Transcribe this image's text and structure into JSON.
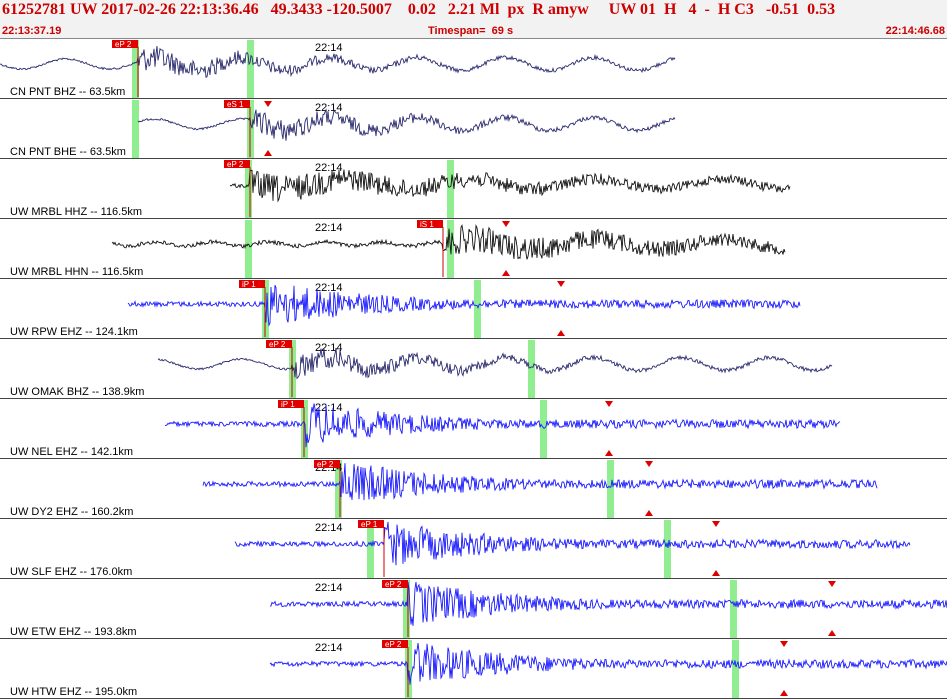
{
  "header": {
    "title": "61252781 UW 2017-02-26 22:13:36.46   49.3433 -120.5007    0.02   2.21 Ml  px  R amyw     UW 01  H   4  -  H C3   -0.51  0.53",
    "start_time": "22:13:37.19",
    "timespan": "Timespan=  69 s",
    "end_time": "22:14:46.68"
  },
  "colors": {
    "header_bg": "#f2f2f2",
    "header_text": "#cc0000",
    "pick_box": "#e00000",
    "green_marker": "#90ee90",
    "broadband": "#2a2a6e",
    "short_period": "#1a1aff",
    "mrbl": "#111111"
  },
  "minute_label": "22:14",
  "stations": [
    {
      "label": "CN PNT BHZ -- 63.5km",
      "pick": "eP 2",
      "color": "broadband",
      "style": "longperiod"
    },
    {
      "label": "CN PNT BHE -- 63.5km",
      "pick": "eS 1",
      "color": "broadband",
      "style": "longperiod"
    },
    {
      "label": "UW MRBL HHZ -- 116.5km",
      "pick": "eP 2",
      "color": "mrbl",
      "style": "broadband"
    },
    {
      "label": "UW MRBL HHN -- 116.5km",
      "pick": "iS 1",
      "color": "mrbl",
      "style": "broadband"
    },
    {
      "label": "UW RPW EHZ -- 124.1km",
      "pick": "iP 1",
      "color": "short_period",
      "style": "short"
    },
    {
      "label": "UW OMAK BHZ -- 138.9km",
      "pick": "eP 2",
      "color": "broadband",
      "style": "longperiod"
    },
    {
      "label": "UW NEL EHZ -- 142.1km",
      "pick": "iP 1",
      "color": "short_period",
      "style": "short"
    },
    {
      "label": "UW DY2 EHZ -- 160.2km",
      "pick": "eP 2",
      "color": "short_period",
      "style": "short"
    },
    {
      "label": "UW SLF EHZ -- 176.0km",
      "pick": "eP 1",
      "color": "short_period",
      "style": "short"
    },
    {
      "label": "UW ETW EHZ -- 193.8km",
      "pick": "eP 2",
      "color": "short_period",
      "style": "short"
    },
    {
      "label": "UW HTW EHZ -- 195.0km",
      "pick": "eP 2",
      "color": "short_period",
      "style": "short"
    }
  ]
}
